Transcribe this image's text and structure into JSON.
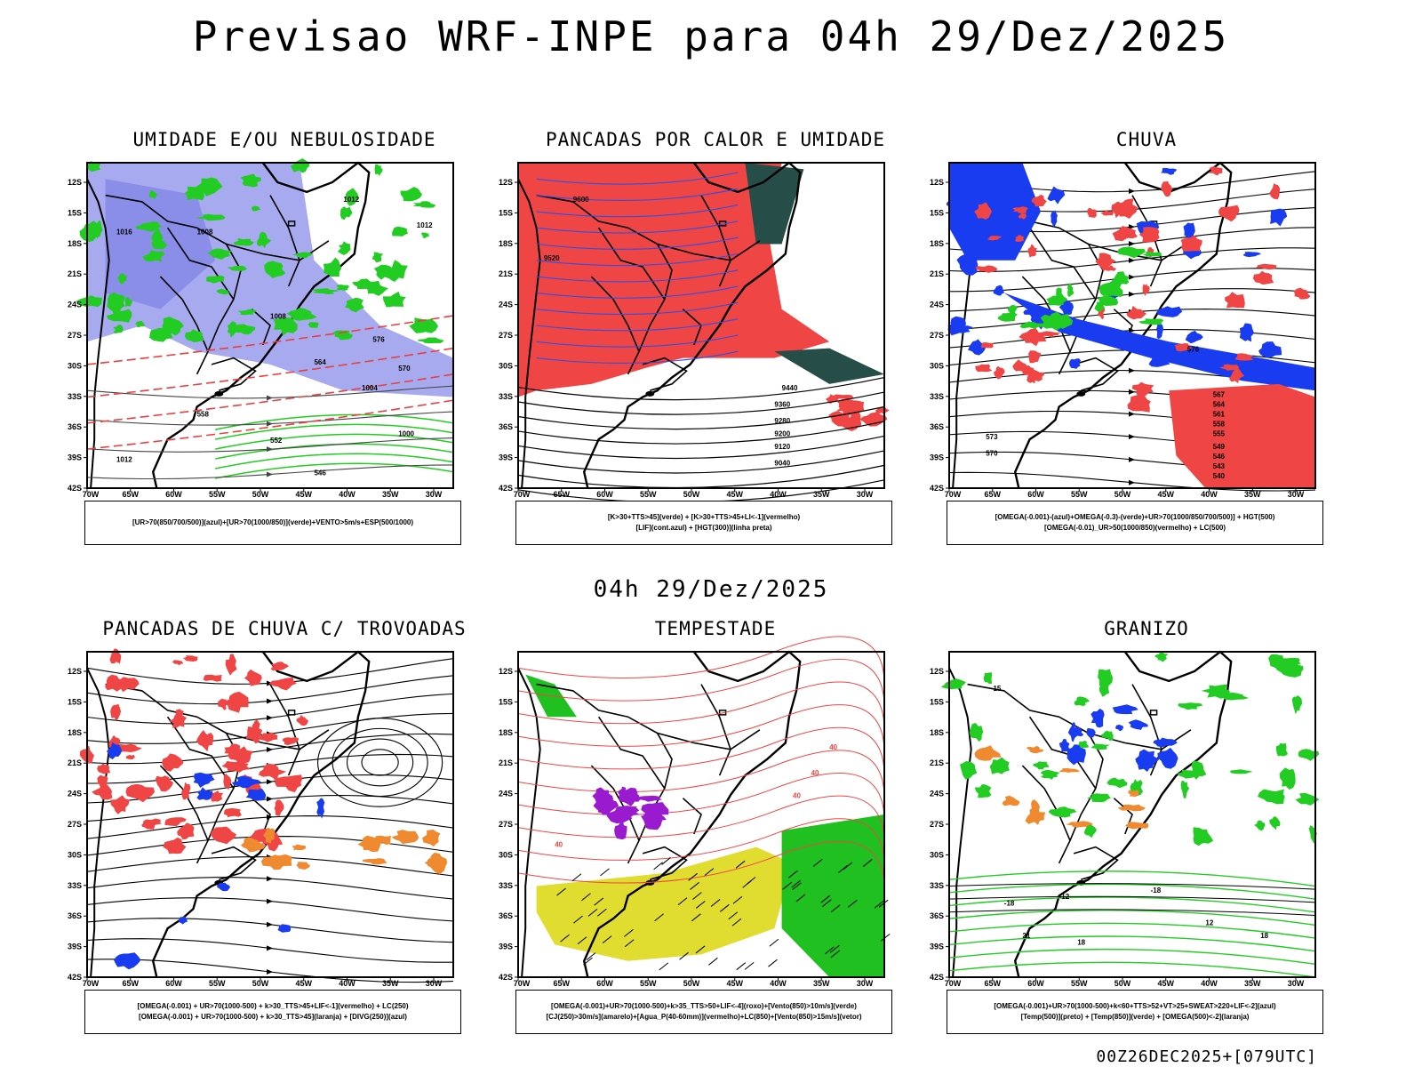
{
  "title": "Previsao WRF-INPE  para 04h 29/Dez/2025",
  "subtitle": "04h 29/Dez/2025",
  "footer": "00Z26DEC2025+[079UTC]",
  "lat_labels": [
    "12S",
    "15S",
    "18S",
    "21S",
    "24S",
    "27S",
    "30S",
    "33S",
    "36S",
    "39S",
    "42S"
  ],
  "lon_labels": [
    "70W",
    "65W",
    "60W",
    "55W",
    "50W",
    "45W",
    "40W",
    "35W",
    "30W"
  ],
  "panels": [
    {
      "id": "umidade",
      "title": "UMIDADE E/OU NEBULOSIDADE",
      "legend": [
        "[UR>70(850/700/500)](azul)+[UR>70(1000/850)](verde)+VENTO>5m/s+ESP(500/1000)"
      ],
      "contour_labels": [
        "1012",
        "1008",
        "1016",
        "1012",
        "1008",
        "1004",
        "1000",
        "576",
        "570",
        "564",
        "558",
        "552",
        "546",
        "1012"
      ]
    },
    {
      "id": "pancadas-calor",
      "title": "PANCADAS POR CALOR E UMIDADE",
      "legend": [
        "[K>30+TTS>45](verde) + [K>30+TTS>45+LI<-1](vermelho)",
        "[LIF](cont.azul) + [HGT(300)](linha preta)"
      ],
      "contour_labels": [
        "9600",
        "9520",
        "9440",
        "9360",
        "9280",
        "9200",
        "9120",
        "9040"
      ]
    },
    {
      "id": "chuva",
      "title": "CHUVA",
      "legend": [
        "[OMEGA(-0.001)-(azul)+OMEGA(-0.3)-(verde)+UR>70(1000/850/700/500)] + HGT(500)",
        "[OMEGA(-0.01)_UR>50(1000/850)(vermelho) + LC(500)"
      ],
      "contour_labels": [
        "576",
        "573",
        "570",
        "567",
        "564",
        "561",
        "558",
        "555",
        "549",
        "546",
        "543",
        "540"
      ]
    },
    {
      "id": "trovoadas",
      "title": "PANCADAS DE CHUVA C/ TROVOADAS",
      "legend": [
        "[OMEGA(-0.001) + UR>70(1000-500) + k>30_TTS>45+LIF<-1](vermelho) + LC(250)",
        "[OMEGA(-0.001) + UR>70(1000-500) + k>30_TTS>45](laranja) + [DIVG(250)](azul)"
      ],
      "contour_labels": []
    },
    {
      "id": "tempestade",
      "title": "TEMPESTADE",
      "legend": [
        "[OMEGA(-0.001)+UR>70(1000-500)+k>35_TTS>50+LIF<-4](roxo)+[Vento(850)>10m/s](verde)",
        "[CJ(250)>30m/s](amarelo)+[Agua_P(40-60mm)](vermelho)+LC(850)+[Vento(850)>15m/s](vetor)"
      ],
      "contour_labels": [
        "40",
        "40",
        "40",
        "40"
      ]
    },
    {
      "id": "granizo",
      "title": "GRANIZO",
      "legend": [
        "[OMEGA(-0.001)+UR>70(1000-500)+k<60+TTS>52+VT>25+SWEAT>220+LIF<-2](azul)",
        "[Temp(500)](preto) + [Temp(850)](verde) + [OMEGA(500)<-2](laranja)"
      ],
      "contour_labels": [
        "15",
        "-18",
        "-12",
        "-18",
        "12",
        "18",
        "21",
        "18"
      ]
    }
  ]
}
